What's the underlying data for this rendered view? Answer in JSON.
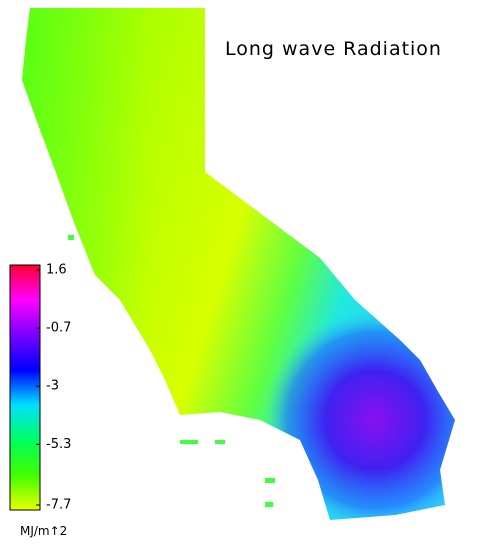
{
  "title": "Long wave Radiation",
  "colorbar": {
    "lim": [
      -7.7,
      1.6
    ],
    "ticks": [
      1.6,
      -0.7,
      -3.0,
      -5.3,
      -7.7
    ],
    "unit": "MJ/m↑2",
    "colors": [
      "#ff0030",
      "#ff00ff",
      "#7a00ff",
      "#0000ff",
      "#00e0ff",
      "#00ff60",
      "#40ff00",
      "#e8ff00"
    ]
  }
}
